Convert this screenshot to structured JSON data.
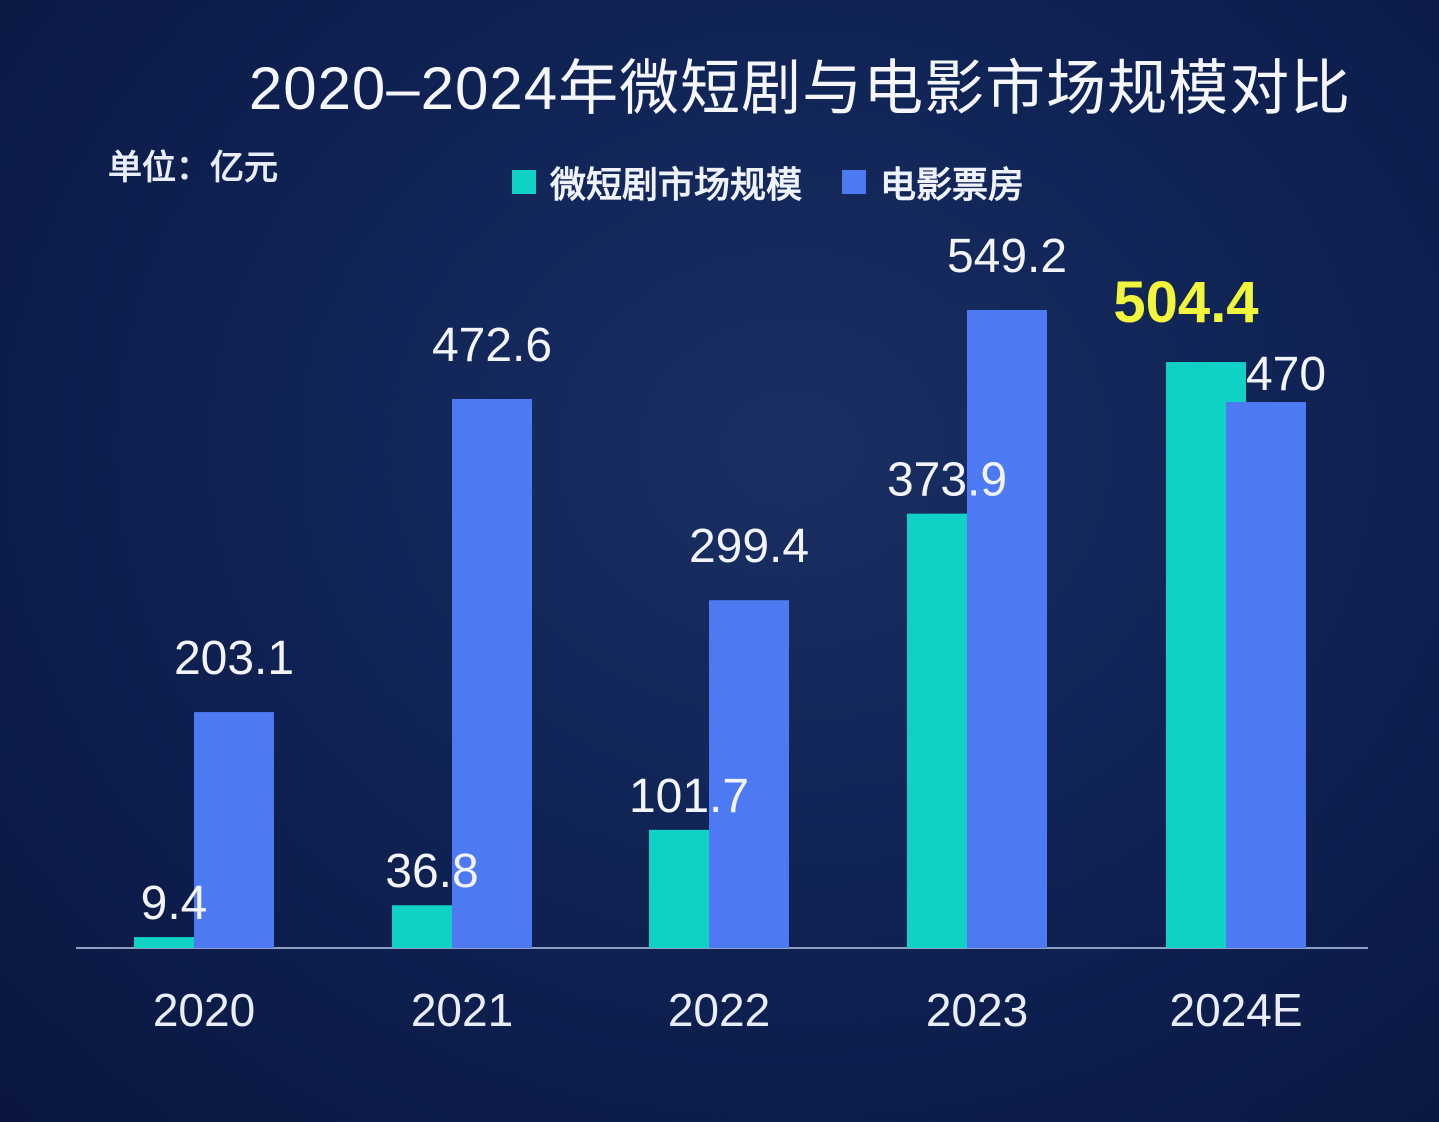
{
  "chart_data": {
    "type": "bar",
    "title": "2020–2024年微短剧与电影市场规模对比",
    "unit_label": "单位：亿元",
    "categories": [
      "2020",
      "2021",
      "2022",
      "2023",
      "2024E"
    ],
    "series": [
      {
        "name": "微短剧市场规模",
        "color": "#0fd1c4",
        "values": [
          9.4,
          36.8,
          101.7,
          373.9,
          504.4
        ]
      },
      {
        "name": "电影票房",
        "color": "#4d79f2",
        "values": [
          203.1,
          472.6,
          299.4,
          549.2,
          470
        ]
      }
    ],
    "value_labels": {
      "series0": [
        "9.4",
        "36.8",
        "101.7",
        "373.9",
        "504.4"
      ],
      "series1": [
        "203.1",
        "472.6",
        "299.4",
        "549.2",
        "470"
      ]
    },
    "highlight": {
      "series": 0,
      "index": 4,
      "color": "#f1f53b"
    },
    "ylim": [
      0,
      600
    ],
    "grid": false,
    "legend_position": "top-center"
  }
}
